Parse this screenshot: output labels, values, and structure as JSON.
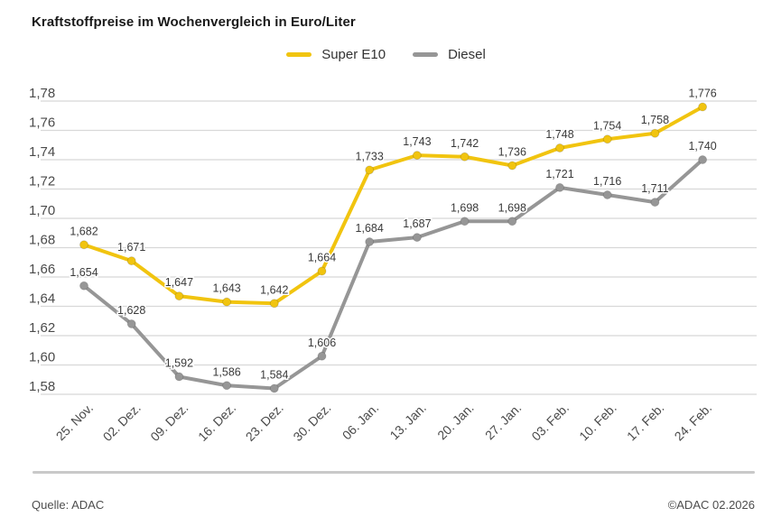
{
  "title": "Kraftstoffpreise im Wochenvergleich in Euro/Liter",
  "legend": [
    {
      "label": "Super E10",
      "color": "#f1c40f"
    },
    {
      "label": "Diesel",
      "color": "#969696"
    }
  ],
  "footer": {
    "source": "Quelle: ADAC",
    "copyright": "©ADAC 02.2026"
  },
  "colors": {
    "super_e10": "#f1c40f",
    "diesel": "#969696",
    "gridline": "#d8d8d8",
    "tick_text": "#4a4a4a",
    "value_label_text": "#3a3a3a",
    "title_text": "#1a1a1a"
  },
  "chart_data": {
    "type": "line",
    "title": "Kraftstoffpreise im Wochenvergleich in Euro/Liter",
    "xlabel": "",
    "ylabel": "Euro/Liter",
    "grid": true,
    "legend_position": "top-center",
    "ylim": [
      1.58,
      1.78
    ],
    "ytick_step": 0.02,
    "yticks": [
      "1,78",
      "1,76",
      "1,74",
      "1,72",
      "1,70",
      "1,68",
      "1,66",
      "1,64",
      "1,62",
      "1,60",
      "1,58"
    ],
    "x": [
      "25. Nov.",
      "02. Dez.",
      "09. Dez.",
      "16. Dez.",
      "23. Dez.",
      "30. Dez.",
      "06. Jan.",
      "13. Jan.",
      "20. Jan.",
      "27. Jan.",
      "03. Feb.",
      "10. Feb.",
      "17. Feb.",
      "24. Feb."
    ],
    "series": [
      {
        "name": "Super E10",
        "color": "#f1c40f",
        "values": [
          1.682,
          1.671,
          1.647,
          1.643,
          1.642,
          1.664,
          1.733,
          1.743,
          1.742,
          1.736,
          1.748,
          1.754,
          1.758,
          1.776
        ],
        "labels": [
          "1,682",
          "1,671",
          "1,647",
          "1,643",
          "1,642",
          "1,664",
          "1,733",
          "1,743",
          "1,742",
          "1,736",
          "1,748",
          "1,754",
          "1,758",
          "1,776"
        ]
      },
      {
        "name": "Diesel",
        "color": "#969696",
        "values": [
          1.654,
          1.628,
          1.592,
          1.586,
          1.584,
          1.606,
          1.684,
          1.687,
          1.698,
          1.698,
          1.721,
          1.716,
          1.711,
          1.74
        ],
        "labels": [
          "1,654",
          "1,628",
          "1,592",
          "1,586",
          "1,584",
          "1,606",
          "1,684",
          "1,687",
          "1,698",
          "1,698",
          "1,721",
          "1,716",
          "1,711",
          "1,740"
        ]
      }
    ]
  }
}
